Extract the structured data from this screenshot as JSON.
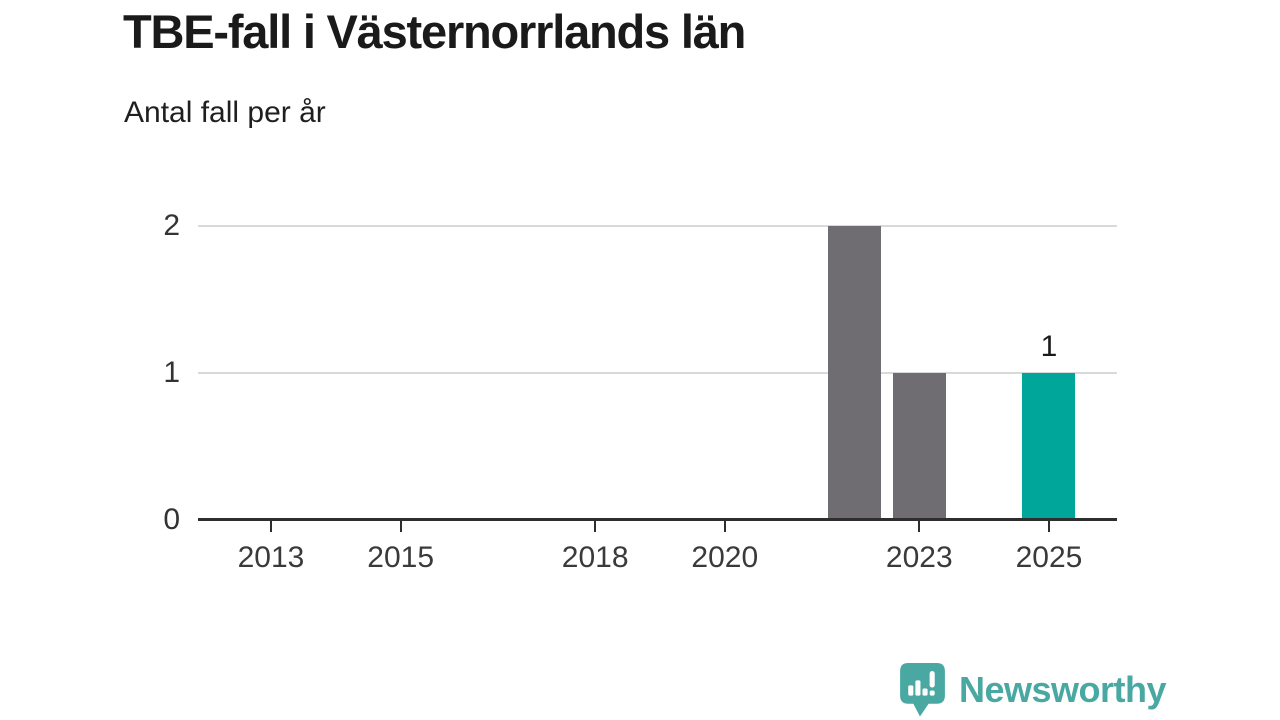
{
  "chart_data": {
    "type": "bar",
    "title": "TBE-fall i Västernorrlands län",
    "subtitle": "Antal fall per år",
    "categories": [
      2012,
      2013,
      2014,
      2015,
      2016,
      2017,
      2018,
      2019,
      2020,
      2021,
      2022,
      2023,
      2024,
      2025
    ],
    "values": [
      0,
      0,
      0,
      0,
      0,
      0,
      0,
      0,
      0,
      0,
      2,
      1,
      0,
      1
    ],
    "highlight_category": 2025,
    "data_label": {
      "category": 2025,
      "text": "1"
    },
    "xticks": [
      2013,
      2015,
      2018,
      2020,
      2023,
      2025
    ],
    "yticks": [
      0,
      1,
      2
    ],
    "ylim": [
      0,
      2
    ],
    "xlabel": "",
    "ylabel": "",
    "grid": "horizontal",
    "legend": "none",
    "colors": {
      "bar": "#6f6c72",
      "highlight": "#00a69a",
      "axis": "#2e2e2e",
      "grid": "#d9d9d9",
      "tick_label": "#3a3a3a"
    }
  },
  "brand": {
    "name": "Newsworthy",
    "color": "#4aa8a2"
  }
}
